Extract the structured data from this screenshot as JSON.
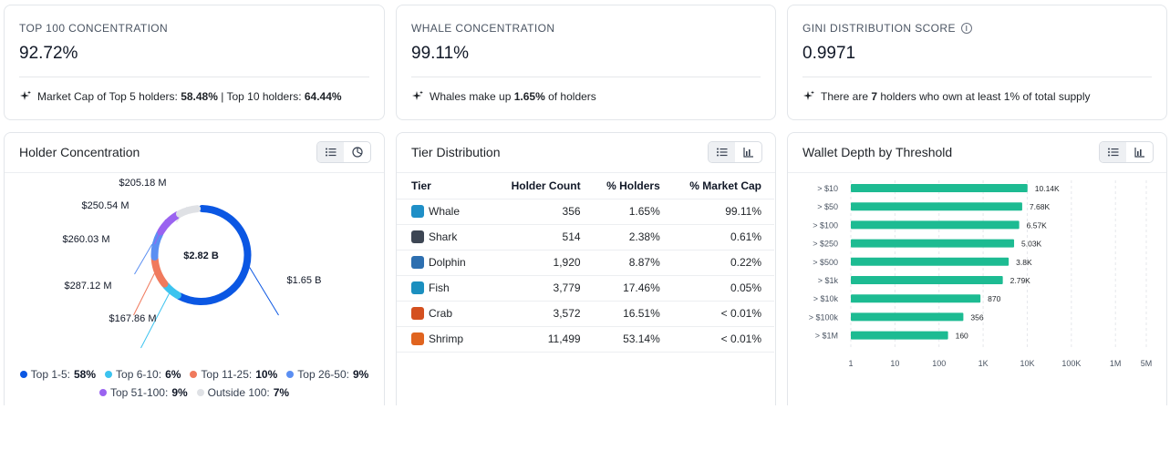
{
  "stats": [
    {
      "label": "TOP 100 CONCENTRATION",
      "value": "92.72%",
      "note_pre": "Market Cap of Top 5 holders: ",
      "note_b1": "58.48%",
      "note_mid": " | Top 10 holders: ",
      "note_b2": "64.44%",
      "note_post": ""
    },
    {
      "label": "WHALE CONCENTRATION",
      "value": "99.11%",
      "note_pre": "Whales make up ",
      "note_b1": "1.65%",
      "note_mid": " of holders",
      "note_b2": "",
      "note_post": ""
    },
    {
      "label": "GINI DISTRIBUTION SCORE",
      "value": "0.9971",
      "note_pre": "There are ",
      "note_b1": "7",
      "note_mid": " holders who own at least 1% of total supply",
      "note_b2": "",
      "note_post": ""
    }
  ],
  "holder_concentration": {
    "title": "Holder Concentration",
    "center_label": "$2.82 B",
    "segments": [
      {
        "name": "Top 1-5",
        "pct": "58%",
        "share": 0.58,
        "value_label": "$1.65 B",
        "color": "#0b57e3"
      },
      {
        "name": "Top 6-10",
        "pct": "6%",
        "share": 0.06,
        "value_label": "$167.86 M",
        "color": "#3cc3ef"
      },
      {
        "name": "Top 11-25",
        "pct": "10%",
        "share": 0.1,
        "value_label": "$287.12 M",
        "color": "#f07a5d"
      },
      {
        "name": "Top 26-50",
        "pct": "9%",
        "share": 0.09,
        "value_label": "$260.03 M",
        "color": "#5b8ff2"
      },
      {
        "name": "Top 51-100",
        "pct": "9%",
        "share": 0.09,
        "value_label": "$250.54 M",
        "color": "#9a63f0"
      },
      {
        "name": "Outside 100",
        "pct": "7%",
        "share": 0.07,
        "value_label": "$205.18 M",
        "color": "#dfe1e5"
      }
    ]
  },
  "tier_distribution": {
    "title": "Tier Distribution",
    "headers": [
      "Tier",
      "Holder Count",
      "% Holders",
      "% Market Cap"
    ],
    "rows": [
      {
        "tier": "Whale",
        "count": "356",
        "holders": "1.65%",
        "mcap": "99.11%",
        "icon": "whale-icon",
        "color": "#1f8fc7"
      },
      {
        "tier": "Shark",
        "count": "514",
        "holders": "2.38%",
        "mcap": "0.61%",
        "icon": "shark-icon",
        "color": "#3d4654"
      },
      {
        "tier": "Dolphin",
        "count": "1,920",
        "holders": "8.87%",
        "mcap": "0.22%",
        "icon": "dolphin-icon",
        "color": "#2d6fb0"
      },
      {
        "tier": "Fish",
        "count": "3,779",
        "holders": "17.46%",
        "mcap": "0.05%",
        "icon": "fish-icon",
        "color": "#1b8fbf"
      },
      {
        "tier": "Crab",
        "count": "3,572",
        "holders": "16.51%",
        "mcap": "< 0.01%",
        "icon": "crab-icon",
        "color": "#d4501f"
      },
      {
        "tier": "Shrimp",
        "count": "11,499",
        "holders": "53.14%",
        "mcap": "< 0.01%",
        "icon": "shrimp-icon",
        "color": "#e0641f"
      }
    ]
  },
  "wallet_depth": {
    "title": "Wallet Depth by Threshold",
    "bar_color": "#1dbb92"
  },
  "chart_data": {
    "type": "bar",
    "orientation": "horizontal",
    "scale": "log",
    "categories": [
      "> $10",
      "> $50",
      "> $100",
      "> $250",
      "> $500",
      "> $1k",
      "> $10k",
      "> $100k",
      "> $1M"
    ],
    "values": [
      10140,
      7680,
      6570,
      5030,
      3800,
      2790,
      870,
      356,
      160
    ],
    "value_labels": [
      "10.14K",
      "7.68K",
      "6.57K",
      "5.03K",
      "3.8K",
      "2.79K",
      "870",
      "356",
      "160"
    ],
    "x_ticks": [
      1,
      10,
      100,
      1000,
      10000,
      100000,
      1000000,
      5000000
    ],
    "x_tick_labels": [
      "1",
      "10",
      "100",
      "1K",
      "10K",
      "100K",
      "1M",
      "5M"
    ],
    "xlim": [
      1,
      5000000
    ],
    "grid": "vertical-dashed"
  }
}
